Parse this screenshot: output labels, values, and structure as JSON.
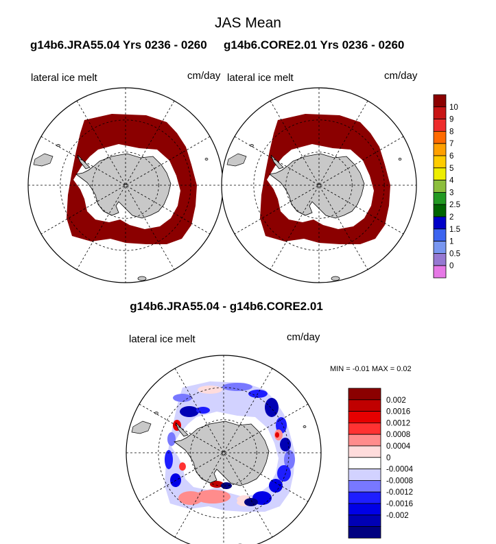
{
  "title": "JAS Mean",
  "left_case": "g14b6.JRA55.04  Yrs 0236 - 0260",
  "right_case": "g14b6.CORE2.01  Yrs 0236 - 0260",
  "diff_title": "g14b6.JRA55.04 - g14b6.CORE2.01",
  "minmax": "MIN =  -0.01 MAX =   0.02",
  "colors": {
    "ocean": "#ffffff",
    "land": "#c8c8c8",
    "field": "#8b0000"
  },
  "chart_data": [
    {
      "type": "heatmap",
      "name": "left-panel",
      "variable_label": "lateral ice melt",
      "units_label": "cm/day",
      "projection": "south-polar-stereographic"
    },
    {
      "type": "heatmap",
      "name": "right-panel",
      "variable_label": "lateral ice melt",
      "units_label": "cm/day",
      "projection": "south-polar-stereographic"
    },
    {
      "type": "heatmap",
      "name": "difference-panel",
      "variable_label": "lateral ice melt",
      "units_label": "cm/day",
      "projection": "south-polar-stereographic"
    }
  ],
  "colorbar_top": {
    "orientation": "vertical",
    "colors": [
      "#8b0000",
      "#c81414",
      "#ee2c2c",
      "#ff6a00",
      "#ffa000",
      "#ffcc00",
      "#eeee00",
      "#8cbe3c",
      "#229922",
      "#006400",
      "#0000c8",
      "#3c64f0",
      "#7896f0",
      "#9678d2",
      "#e678e6"
    ],
    "labels": [
      "10",
      "9",
      "8",
      "7",
      "6",
      "5",
      "4",
      "3",
      "2.5",
      "2",
      "1.5",
      "1",
      "0.5",
      "0"
    ]
  },
  "colorbar_diff": {
    "orientation": "vertical",
    "colors": [
      "#8b0000",
      "#c00000",
      "#e60000",
      "#ff3232",
      "#ff8c8c",
      "#ffdcdc",
      "#ffffff",
      "#d2d2ff",
      "#7878ff",
      "#1e1eff",
      "#0000e6",
      "#0000b4",
      "#000080"
    ],
    "labels": [
      "0.002",
      "0.0016",
      "0.0012",
      "0.0008",
      "0.0004",
      "0",
      "-0.0004",
      "-0.0008",
      "-0.0012",
      "-0.0016",
      "-0.002"
    ]
  }
}
